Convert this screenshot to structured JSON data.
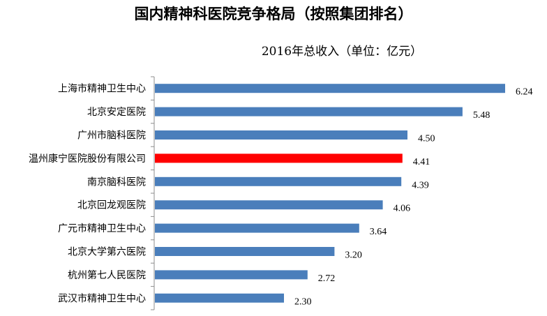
{
  "chart_data": {
    "type": "bar",
    "orientation": "horizontal",
    "title": "国内精神科医院竞争格局（按照集团排名）",
    "subtitle": "2016年总收入（单位：亿元）",
    "xlabel": "",
    "ylabel": "",
    "xlim": [
      0,
      6.24
    ],
    "grid": false,
    "legend": "none",
    "categories": [
      "上海市精神卫生中心",
      "北京安定医院",
      "广州市脑科医院",
      "温州康宁医院股份有限公司",
      "南京脑科医院",
      "北京回龙观医院",
      "广元市精神卫生中心",
      "北京大学第六医院",
      "杭州第七人民医院",
      "武汉市精神卫生中心"
    ],
    "values": [
      6.24,
      5.48,
      4.5,
      4.41,
      4.39,
      4.06,
      3.64,
      3.2,
      2.72,
      2.3
    ],
    "value_labels": [
      "6.24",
      "5.48",
      "4.50",
      "4.41",
      "4.39",
      "4.06",
      "3.64",
      "3.20",
      "2.72",
      "2.30"
    ],
    "highlight_index": 3,
    "colors": {
      "bar": "#4a7ebb",
      "highlight": "#ff0000"
    }
  }
}
